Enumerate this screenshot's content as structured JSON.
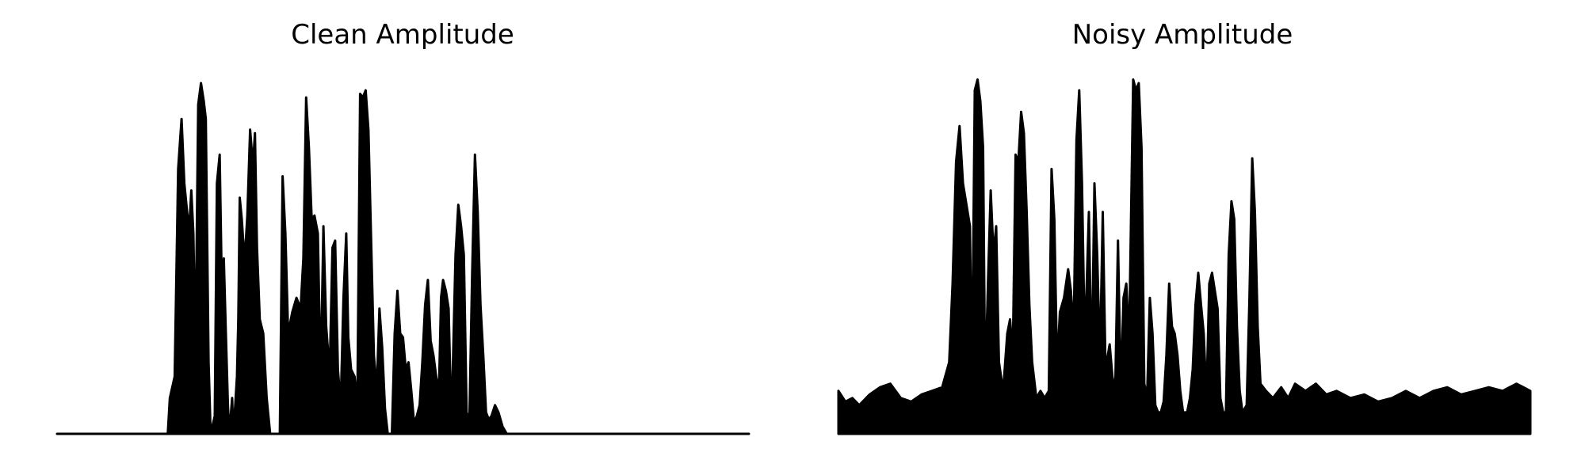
{
  "chart_data": [
    {
      "type": "area",
      "title": "Clean Amplitude",
      "xlabel": "",
      "ylabel": "",
      "axes": "hidden",
      "grid": false,
      "ylim": [
        0,
        1
      ],
      "color": "#000000",
      "envelope": [
        [
          0.0,
          0.0
        ],
        [
          0.16,
          0.0
        ],
        [
          0.163,
          0.1
        ],
        [
          0.17,
          0.16
        ],
        [
          0.175,
          0.74
        ],
        [
          0.18,
          0.88
        ],
        [
          0.184,
          0.7
        ],
        [
          0.188,
          0.62
        ],
        [
          0.191,
          0.57
        ],
        [
          0.194,
          0.68
        ],
        [
          0.197,
          0.56
        ],
        [
          0.2,
          0.22
        ],
        [
          0.204,
          0.92
        ],
        [
          0.208,
          0.98
        ],
        [
          0.212,
          0.93
        ],
        [
          0.215,
          0.88
        ],
        [
          0.219,
          0.2
        ],
        [
          0.222,
          0.0
        ],
        [
          0.228,
          0.05
        ],
        [
          0.231,
          0.7
        ],
        [
          0.235,
          0.78
        ],
        [
          0.238,
          0.42
        ],
        [
          0.241,
          0.49
        ],
        [
          0.244,
          0.28
        ],
        [
          0.247,
          0.08
        ],
        [
          0.249,
          0.0
        ],
        [
          0.253,
          0.1
        ],
        [
          0.255,
          0.0
        ],
        [
          0.26,
          0.16
        ],
        [
          0.262,
          0.32
        ],
        [
          0.264,
          0.66
        ],
        [
          0.267,
          0.6
        ],
        [
          0.271,
          0.48
        ],
        [
          0.275,
          0.61
        ],
        [
          0.279,
          0.85
        ],
        [
          0.283,
          0.75
        ],
        [
          0.286,
          0.84
        ],
        [
          0.289,
          0.52
        ],
        [
          0.293,
          0.32
        ],
        [
          0.298,
          0.28
        ],
        [
          0.303,
          0.1
        ],
        [
          0.308,
          0.0
        ],
        [
          0.322,
          0.0
        ],
        [
          0.326,
          0.72
        ],
        [
          0.33,
          0.56
        ],
        [
          0.334,
          0.28
        ],
        [
          0.34,
          0.34
        ],
        [
          0.346,
          0.38
        ],
        [
          0.352,
          0.35
        ],
        [
          0.356,
          0.49
        ],
        [
          0.36,
          0.94
        ],
        [
          0.364,
          0.8
        ],
        [
          0.368,
          0.6
        ],
        [
          0.372,
          0.61
        ],
        [
          0.377,
          0.56
        ],
        [
          0.381,
          0.14
        ],
        [
          0.385,
          0.58
        ],
        [
          0.389,
          0.3
        ],
        [
          0.394,
          0.17
        ],
        [
          0.398,
          0.52
        ],
        [
          0.402,
          0.54
        ],
        [
          0.406,
          0.18
        ],
        [
          0.41,
          0.08
        ],
        [
          0.414,
          0.38
        ],
        [
          0.418,
          0.56
        ],
        [
          0.421,
          0.27
        ],
        [
          0.425,
          0.18
        ],
        [
          0.43,
          0.16
        ],
        [
          0.434,
          0.08
        ],
        [
          0.438,
          0.95
        ],
        [
          0.442,
          0.94
        ],
        [
          0.446,
          0.96
        ],
        [
          0.45,
          0.85
        ],
        [
          0.454,
          0.54
        ],
        [
          0.458,
          0.22
        ],
        [
          0.462,
          0.12
        ],
        [
          0.466,
          0.35
        ],
        [
          0.47,
          0.24
        ],
        [
          0.474,
          0.07
        ],
        [
          0.478,
          0.0
        ],
        [
          0.484,
          0.0
        ],
        [
          0.488,
          0.28
        ],
        [
          0.492,
          0.4
        ],
        [
          0.496,
          0.28
        ],
        [
          0.5,
          0.27
        ],
        [
          0.504,
          0.18
        ],
        [
          0.508,
          0.2
        ],
        [
          0.512,
          0.12
        ],
        [
          0.516,
          0.03
        ],
        [
          0.52,
          0.05
        ],
        [
          0.524,
          0.08
        ],
        [
          0.528,
          0.2
        ],
        [
          0.532,
          0.36
        ],
        [
          0.536,
          0.43
        ],
        [
          0.54,
          0.26
        ],
        [
          0.544,
          0.22
        ],
        [
          0.548,
          0.16
        ],
        [
          0.552,
          0.12
        ],
        [
          0.555,
          0.38
        ],
        [
          0.558,
          0.43
        ],
        [
          0.562,
          0.4
        ],
        [
          0.566,
          0.35
        ],
        [
          0.57,
          0.02
        ],
        [
          0.576,
          0.5
        ],
        [
          0.58,
          0.64
        ],
        [
          0.584,
          0.58
        ],
        [
          0.588,
          0.5
        ],
        [
          0.592,
          0.06
        ],
        [
          0.596,
          0.04
        ],
        [
          0.6,
          0.45
        ],
        [
          0.604,
          0.78
        ],
        [
          0.608,
          0.62
        ],
        [
          0.612,
          0.36
        ],
        [
          0.616,
          0.22
        ],
        [
          0.62,
          0.06
        ],
        [
          0.624,
          0.04
        ],
        [
          0.628,
          0.05
        ],
        [
          0.633,
          0.08
        ],
        [
          0.638,
          0.06
        ],
        [
          0.644,
          0.02
        ],
        [
          0.65,
          0.0
        ],
        [
          1.0,
          0.0
        ]
      ]
    },
    {
      "type": "area",
      "title": "Noisy Amplitude",
      "xlabel": "",
      "ylabel": "",
      "axes": "hidden",
      "grid": false,
      "ylim": [
        0,
        1
      ],
      "color": "#000000",
      "envelope": [
        [
          0.0,
          0.12
        ],
        [
          0.01,
          0.09
        ],
        [
          0.02,
          0.1
        ],
        [
          0.03,
          0.08
        ],
        [
          0.045,
          0.11
        ],
        [
          0.06,
          0.13
        ],
        [
          0.075,
          0.14
        ],
        [
          0.09,
          0.1
        ],
        [
          0.105,
          0.09
        ],
        [
          0.12,
          0.11
        ],
        [
          0.135,
          0.12
        ],
        [
          0.15,
          0.13
        ],
        [
          0.16,
          0.2
        ],
        [
          0.165,
          0.42
        ],
        [
          0.17,
          0.76
        ],
        [
          0.175,
          0.86
        ],
        [
          0.18,
          0.7
        ],
        [
          0.185,
          0.64
        ],
        [
          0.19,
          0.58
        ],
        [
          0.193,
          0.14
        ],
        [
          0.197,
          0.96
        ],
        [
          0.201,
          0.99
        ],
        [
          0.205,
          0.93
        ],
        [
          0.209,
          0.8
        ],
        [
          0.212,
          0.12
        ],
        [
          0.216,
          0.42
        ],
        [
          0.22,
          0.68
        ],
        [
          0.224,
          0.5
        ],
        [
          0.228,
          0.58
        ],
        [
          0.232,
          0.2
        ],
        [
          0.238,
          0.12
        ],
        [
          0.244,
          0.28
        ],
        [
          0.248,
          0.32
        ],
        [
          0.252,
          0.22
        ],
        [
          0.256,
          0.78
        ],
        [
          0.26,
          0.76
        ],
        [
          0.264,
          0.9
        ],
        [
          0.268,
          0.84
        ],
        [
          0.272,
          0.62
        ],
        [
          0.276,
          0.36
        ],
        [
          0.28,
          0.2
        ],
        [
          0.286,
          0.1
        ],
        [
          0.292,
          0.12
        ],
        [
          0.298,
          0.1
        ],
        [
          0.304,
          0.12
        ],
        [
          0.308,
          0.74
        ],
        [
          0.312,
          0.6
        ],
        [
          0.316,
          0.18
        ],
        [
          0.32,
          0.34
        ],
        [
          0.326,
          0.38
        ],
        [
          0.332,
          0.46
        ],
        [
          0.336,
          0.4
        ],
        [
          0.34,
          0.28
        ],
        [
          0.344,
          0.82
        ],
        [
          0.348,
          0.96
        ],
        [
          0.352,
          0.7
        ],
        [
          0.356,
          0.24
        ],
        [
          0.362,
          0.62
        ],
        [
          0.366,
          0.16
        ],
        [
          0.37,
          0.7
        ],
        [
          0.374,
          0.5
        ],
        [
          0.378,
          0.2
        ],
        [
          0.382,
          0.62
        ],
        [
          0.386,
          0.18
        ],
        [
          0.392,
          0.25
        ],
        [
          0.396,
          0.16
        ],
        [
          0.4,
          0.12
        ],
        [
          0.404,
          0.54
        ],
        [
          0.408,
          0.12
        ],
        [
          0.412,
          0.38
        ],
        [
          0.416,
          0.42
        ],
        [
          0.42,
          0.25
        ],
        [
          0.426,
          0.99
        ],
        [
          0.43,
          0.96
        ],
        [
          0.434,
          0.98
        ],
        [
          0.438,
          0.8
        ],
        [
          0.442,
          0.14
        ],
        [
          0.446,
          0.1
        ],
        [
          0.45,
          0.38
        ],
        [
          0.454,
          0.28
        ],
        [
          0.458,
          0.08
        ],
        [
          0.462,
          0.06
        ],
        [
          0.466,
          0.06
        ],
        [
          0.47,
          0.09
        ],
        [
          0.474,
          0.22
        ],
        [
          0.478,
          0.42
        ],
        [
          0.482,
          0.3
        ],
        [
          0.486,
          0.28
        ],
        [
          0.49,
          0.22
        ],
        [
          0.494,
          0.12
        ],
        [
          0.498,
          0.06
        ],
        [
          0.504,
          0.06
        ],
        [
          0.508,
          0.1
        ],
        [
          0.512,
          0.18
        ],
        [
          0.516,
          0.36
        ],
        [
          0.52,
          0.45
        ],
        [
          0.524,
          0.36
        ],
        [
          0.528,
          0.28
        ],
        [
          0.532,
          0.1
        ],
        [
          0.536,
          0.42
        ],
        [
          0.54,
          0.45
        ],
        [
          0.544,
          0.4
        ],
        [
          0.548,
          0.35
        ],
        [
          0.552,
          0.1
        ],
        [
          0.556,
          0.06
        ],
        [
          0.56,
          0.06
        ],
        [
          0.564,
          0.5
        ],
        [
          0.568,
          0.65
        ],
        [
          0.572,
          0.6
        ],
        [
          0.576,
          0.3
        ],
        [
          0.58,
          0.12
        ],
        [
          0.584,
          0.06
        ],
        [
          0.59,
          0.08
        ],
        [
          0.594,
          0.38
        ],
        [
          0.598,
          0.77
        ],
        [
          0.602,
          0.62
        ],
        [
          0.606,
          0.3
        ],
        [
          0.61,
          0.14
        ],
        [
          0.618,
          0.12
        ],
        [
          0.628,
          0.1
        ],
        [
          0.64,
          0.13
        ],
        [
          0.65,
          0.1
        ],
        [
          0.66,
          0.14
        ],
        [
          0.675,
          0.12
        ],
        [
          0.69,
          0.14
        ],
        [
          0.705,
          0.11
        ],
        [
          0.72,
          0.12
        ],
        [
          0.74,
          0.1
        ],
        [
          0.76,
          0.11
        ],
        [
          0.78,
          0.09
        ],
        [
          0.8,
          0.1
        ],
        [
          0.82,
          0.12
        ],
        [
          0.84,
          0.1
        ],
        [
          0.86,
          0.12
        ],
        [
          0.88,
          0.13
        ],
        [
          0.9,
          0.11
        ],
        [
          0.92,
          0.12
        ],
        [
          0.94,
          0.13
        ],
        [
          0.96,
          0.12
        ],
        [
          0.98,
          0.14
        ],
        [
          0.99,
          0.13
        ],
        [
          1.0,
          0.12
        ]
      ]
    }
  ]
}
